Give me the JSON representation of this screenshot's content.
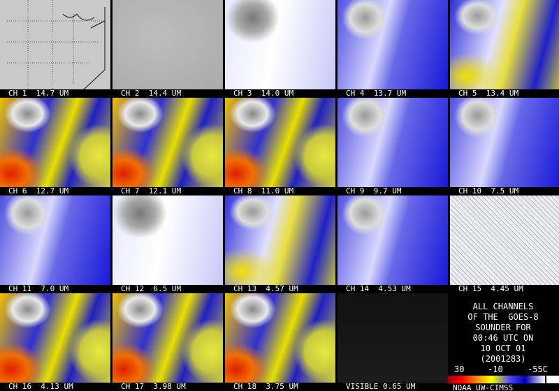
{
  "panels": [
    {
      "label": "CH 1  14.7 UM"
    },
    {
      "label": "CH 2  14.4 UM"
    },
    {
      "label": "CH 3  14.0 UM"
    },
    {
      "label": "CH 4  13.7 UM"
    },
    {
      "label": "CH 5  13.4 UM"
    },
    {
      "label": "CH 6  12.7 UM"
    },
    {
      "label": "CH 7  12.1 UM"
    },
    {
      "label": "CH 8  11.0 UM"
    },
    {
      "label": "CH 9  9.7 UM"
    },
    {
      "label": "CH 10  7.5 UM"
    },
    {
      "label": "CH 11  7.0 UM"
    },
    {
      "label": "CH 12  6.5 UM"
    },
    {
      "label": "CH 13  4.57 UM"
    },
    {
      "label": "CH 14  4.53 UM"
    },
    {
      "label": "CH 15  4.45 UM"
    },
    {
      "label": "CH 16  4.13 UM"
    },
    {
      "label": "CH 17  3.98 UM"
    },
    {
      "label": "CH 18  3.75 UM"
    },
    {
      "label": "VISIBLE 0.65 UM"
    }
  ],
  "info": {
    "lines": [
      "ALL CHANNELS",
      "OF THE  GOES-8",
      "SOUNDER FOR",
      "00:46 UTC ON",
      "10 OCT 01",
      "(2001283)"
    ],
    "scale": [
      "30",
      "-10",
      "-55C"
    ],
    "credit": "NOAA UW-CIMSS"
  }
}
